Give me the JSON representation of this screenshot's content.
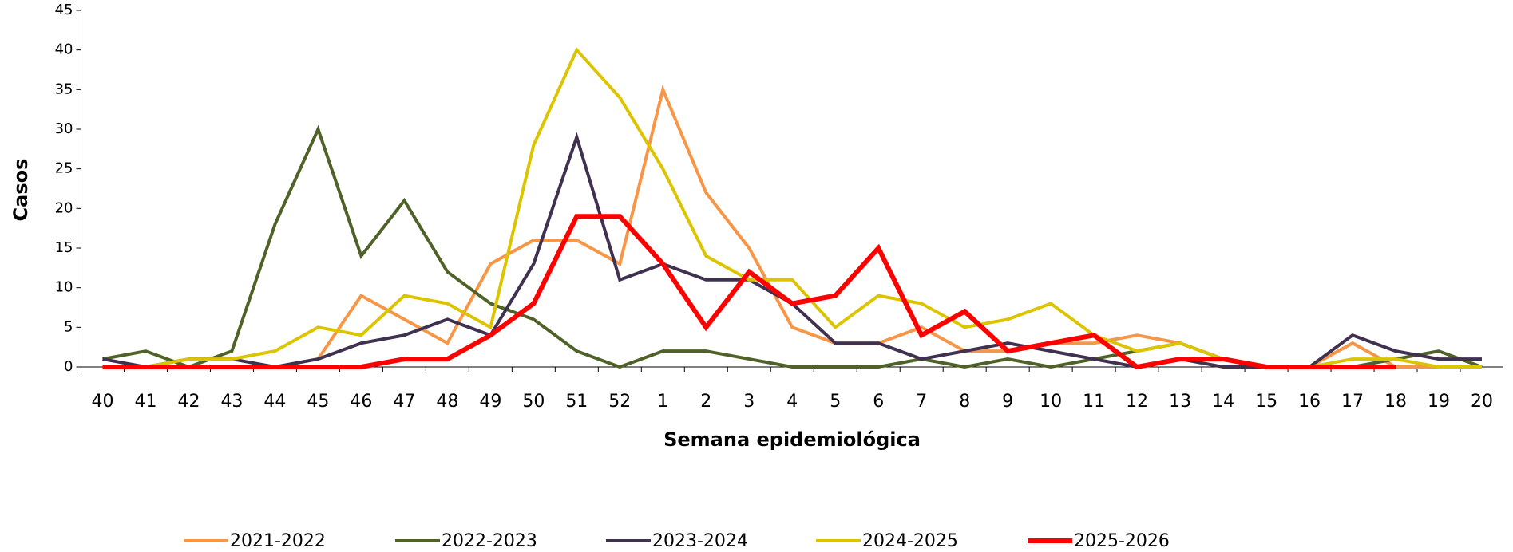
{
  "chart_data": {
    "type": "line",
    "y_label": "Casos",
    "x_label": "Semana epidemiológica",
    "categories": [
      "40",
      "41",
      "42",
      "43",
      "44",
      "45",
      "46",
      "47",
      "48",
      "49",
      "50",
      "51",
      "52",
      "1",
      "2",
      "3",
      "4",
      "5",
      "6",
      "7",
      "8",
      "9",
      "10",
      "11",
      "12",
      "13",
      "14",
      "15",
      "16",
      "17",
      "18",
      "19",
      "20"
    ],
    "ylim": [
      0,
      45
    ],
    "yticks": [
      0,
      5,
      10,
      15,
      20,
      25,
      30,
      35,
      40,
      45
    ],
    "series": [
      {
        "name": "2021-2022",
        "color": "#f79646",
        "values": [
          0,
          0,
          0,
          0,
          0,
          1,
          9,
          6,
          3,
          13,
          16,
          16,
          13,
          35,
          22,
          15,
          5,
          3,
          3,
          5,
          2,
          2,
          3,
          3,
          4,
          3,
          1,
          0,
          0,
          3,
          0,
          0,
          0
        ]
      },
      {
        "name": "2022-2023",
        "color": "#4f6228",
        "values": [
          1,
          2,
          0,
          2,
          18,
          30,
          14,
          21,
          12,
          8,
          6,
          2,
          0,
          2,
          2,
          1,
          0,
          0,
          0,
          1,
          0,
          1,
          0,
          1,
          2,
          3,
          1,
          0,
          0,
          0,
          1,
          2,
          0
        ]
      },
      {
        "name": "2023-2024",
        "color": "#403151",
        "values": [
          1,
          0,
          1,
          1,
          0,
          1,
          3,
          4,
          6,
          4,
          13,
          29,
          11,
          13,
          11,
          11,
          8,
          3,
          3,
          1,
          2,
          3,
          2,
          1,
          0,
          1,
          0,
          0,
          0,
          4,
          2,
          1,
          1
        ]
      },
      {
        "name": "2024-2025",
        "color": "#dcc500",
        "values": [
          0,
          0,
          1,
          1,
          2,
          5,
          4,
          9,
          8,
          5,
          28,
          40,
          34,
          25,
          14,
          11,
          11,
          5,
          9,
          8,
          5,
          6,
          8,
          4,
          2,
          3,
          1,
          0,
          0,
          1,
          1,
          0,
          0
        ]
      },
      {
        "name": "2025-2026",
        "color": "#ff0000",
        "values": [
          0,
          0,
          0,
          0,
          0,
          0,
          0,
          1,
          1,
          4,
          8,
          19,
          19,
          13,
          5,
          12,
          8,
          9,
          15,
          4,
          7,
          2,
          3,
          4,
          0,
          1,
          1,
          0,
          0,
          0,
          0,
          null,
          null
        ]
      }
    ]
  }
}
